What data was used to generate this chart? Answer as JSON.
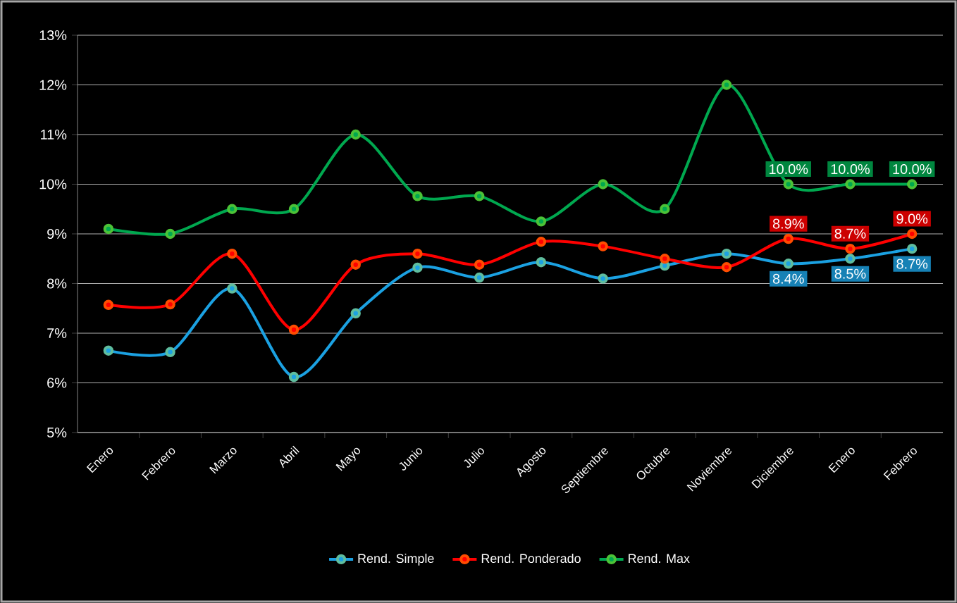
{
  "chart_data": {
    "type": "line",
    "categories": [
      "Enero",
      "Febrero",
      "Marzo",
      "Abril",
      "Mayo",
      "Junio",
      "Julio",
      "Agosto",
      "Septiembre",
      "Octubre",
      "Noviembre",
      "Diciembre",
      "Enero",
      "Febrero"
    ],
    "series": [
      {
        "name": "Rend. Simple",
        "color": "#1ba1e2",
        "values": [
          6.65,
          6.62,
          7.9,
          6.12,
          7.4,
          8.32,
          8.12,
          8.43,
          8.1,
          8.36,
          8.6,
          8.4,
          8.5,
          8.7
        ],
        "value_labels": [
          null,
          null,
          null,
          null,
          null,
          null,
          null,
          null,
          null,
          null,
          null,
          "8.4%",
          "8.5%",
          "8.7%"
        ]
      },
      {
        "name": "Rend. Ponderado",
        "color": "#ff0000",
        "values": [
          7.57,
          7.58,
          8.6,
          7.07,
          8.38,
          8.6,
          8.38,
          8.84,
          8.75,
          8.5,
          8.33,
          8.9,
          8.7,
          9.0
        ],
        "value_labels": [
          null,
          null,
          null,
          null,
          null,
          null,
          null,
          null,
          null,
          null,
          null,
          "8.9%",
          "8.7%",
          "9.0%"
        ]
      },
      {
        "name": "Rend. Max",
        "color": "#00a84f",
        "values": [
          9.1,
          9.0,
          9.5,
          9.5,
          11.0,
          9.76,
          9.76,
          9.25,
          10.0,
          9.5,
          12.0,
          10.0,
          10.0,
          10.0
        ],
        "value_labels": [
          null,
          null,
          null,
          null,
          null,
          null,
          null,
          null,
          null,
          null,
          null,
          "10.0%",
          "10.0%",
          "10.0%"
        ]
      }
    ],
    "ylim": [
      5,
      13
    ],
    "yticks": [
      {
        "value": 5,
        "label": "5%"
      },
      {
        "value": 6,
        "label": "6%"
      },
      {
        "value": 7,
        "label": "7%"
      },
      {
        "value": 8,
        "label": "8%"
      },
      {
        "value": 9,
        "label": "9%"
      },
      {
        "value": 10,
        "label": "10%"
      },
      {
        "value": 11,
        "label": "11%"
      },
      {
        "value": 12,
        "label": "12%"
      },
      {
        "value": 13,
        "label": "13%"
      }
    ],
    "grid": "y",
    "legend": "bottom",
    "marker": "circle",
    "line_style": "solid"
  }
}
